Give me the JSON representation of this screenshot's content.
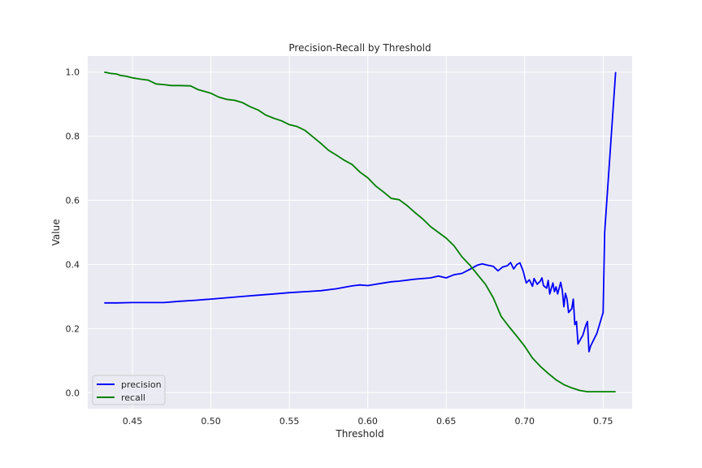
{
  "chart_data": {
    "type": "line",
    "title": "Precision-Recall by Threshold",
    "xlabel": "Threshold",
    "ylabel": "Value",
    "xlim": [
      0.4215,
      0.7685
    ],
    "ylim": [
      -0.05,
      1.05
    ],
    "xticks": [
      0.45,
      0.5,
      0.55,
      0.6,
      0.65,
      0.7,
      0.75
    ],
    "xtick_labels": [
      "0.45",
      "0.50",
      "0.55",
      "0.60",
      "0.65",
      "0.70",
      "0.75"
    ],
    "yticks": [
      0.0,
      0.2,
      0.4,
      0.6,
      0.8,
      1.0
    ],
    "ytick_labels": [
      "0.0",
      "0.2",
      "0.4",
      "0.6",
      "0.8",
      "1.0"
    ],
    "grid": true,
    "legend_position": "lower-left",
    "background": "#eaeaf2",
    "series": [
      {
        "name": "precision",
        "color": "#0000ff",
        "points": [
          [
            0.432,
            0.28
          ],
          [
            0.44,
            0.28
          ],
          [
            0.45,
            0.281
          ],
          [
            0.46,
            0.281
          ],
          [
            0.47,
            0.281
          ],
          [
            0.48,
            0.285
          ],
          [
            0.49,
            0.288
          ],
          [
            0.5,
            0.292
          ],
          [
            0.51,
            0.296
          ],
          [
            0.52,
            0.3
          ],
          [
            0.53,
            0.304
          ],
          [
            0.54,
            0.308
          ],
          [
            0.55,
            0.312
          ],
          [
            0.56,
            0.315
          ],
          [
            0.57,
            0.318
          ],
          [
            0.58,
            0.324
          ],
          [
            0.59,
            0.333
          ],
          [
            0.595,
            0.336
          ],
          [
            0.6,
            0.334
          ],
          [
            0.605,
            0.338
          ],
          [
            0.61,
            0.342
          ],
          [
            0.615,
            0.346
          ],
          [
            0.62,
            0.348
          ],
          [
            0.63,
            0.354
          ],
          [
            0.64,
            0.358
          ],
          [
            0.645,
            0.364
          ],
          [
            0.65,
            0.358
          ],
          [
            0.655,
            0.368
          ],
          [
            0.66,
            0.372
          ],
          [
            0.664,
            0.382
          ],
          [
            0.667,
            0.39
          ],
          [
            0.67,
            0.398
          ],
          [
            0.673,
            0.402
          ],
          [
            0.676,
            0.398
          ],
          [
            0.68,
            0.394
          ],
          [
            0.683,
            0.38
          ],
          [
            0.686,
            0.392
          ],
          [
            0.689,
            0.396
          ],
          [
            0.691,
            0.406
          ],
          [
            0.693,
            0.386
          ],
          [
            0.695,
            0.4
          ],
          [
            0.697,
            0.405
          ],
          [
            0.699,
            0.38
          ],
          [
            0.701,
            0.342
          ],
          [
            0.703,
            0.352
          ],
          [
            0.705,
            0.332
          ],
          [
            0.706,
            0.356
          ],
          [
            0.708,
            0.338
          ],
          [
            0.71,
            0.348
          ],
          [
            0.711,
            0.358
          ],
          [
            0.712,
            0.334
          ],
          [
            0.714,
            0.326
          ],
          [
            0.715,
            0.35
          ],
          [
            0.716,
            0.308
          ],
          [
            0.718,
            0.342
          ],
          [
            0.719,
            0.315
          ],
          [
            0.72,
            0.33
          ],
          [
            0.721,
            0.308
          ],
          [
            0.722,
            0.326
          ],
          [
            0.723,
            0.344
          ],
          [
            0.724,
            0.318
          ],
          [
            0.725,
            0.268
          ],
          [
            0.726,
            0.31
          ],
          [
            0.727,
            0.292
          ],
          [
            0.728,
            0.25
          ],
          [
            0.73,
            0.262
          ],
          [
            0.731,
            0.292
          ],
          [
            0.732,
            0.212
          ],
          [
            0.733,
            0.222
          ],
          [
            0.734,
            0.152
          ],
          [
            0.736,
            0.17
          ],
          [
            0.737,
            0.178
          ],
          [
            0.739,
            0.21
          ],
          [
            0.74,
            0.222
          ],
          [
            0.741,
            0.128
          ],
          [
            0.742,
            0.145
          ],
          [
            0.746,
            0.185
          ],
          [
            0.75,
            0.25
          ],
          [
            0.751,
            0.5
          ],
          [
            0.758,
            1.0
          ]
        ]
      },
      {
        "name": "recall",
        "color": "#008000",
        "points": [
          [
            0.432,
            1.0
          ],
          [
            0.436,
            0.996
          ],
          [
            0.44,
            0.994
          ],
          [
            0.442,
            0.99
          ],
          [
            0.446,
            0.987
          ],
          [
            0.45,
            0.982
          ],
          [
            0.455,
            0.978
          ],
          [
            0.46,
            0.975
          ],
          [
            0.465,
            0.963
          ],
          [
            0.47,
            0.961
          ],
          [
            0.475,
            0.958
          ],
          [
            0.48,
            0.958
          ],
          [
            0.487,
            0.957
          ],
          [
            0.492,
            0.945
          ],
          [
            0.5,
            0.934
          ],
          [
            0.505,
            0.922
          ],
          [
            0.51,
            0.915
          ],
          [
            0.515,
            0.912
          ],
          [
            0.52,
            0.905
          ],
          [
            0.525,
            0.892
          ],
          [
            0.53,
            0.882
          ],
          [
            0.535,
            0.866
          ],
          [
            0.54,
            0.856
          ],
          [
            0.545,
            0.848
          ],
          [
            0.55,
            0.836
          ],
          [
            0.555,
            0.83
          ],
          [
            0.56,
            0.818
          ],
          [
            0.565,
            0.798
          ],
          [
            0.57,
            0.778
          ],
          [
            0.575,
            0.756
          ],
          [
            0.58,
            0.741
          ],
          [
            0.585,
            0.725
          ],
          [
            0.59,
            0.712
          ],
          [
            0.595,
            0.688
          ],
          [
            0.6,
            0.67
          ],
          [
            0.605,
            0.645
          ],
          [
            0.61,
            0.626
          ],
          [
            0.615,
            0.606
          ],
          [
            0.62,
            0.602
          ],
          [
            0.625,
            0.584
          ],
          [
            0.63,
            0.562
          ],
          [
            0.635,
            0.542
          ],
          [
            0.64,
            0.518
          ],
          [
            0.645,
            0.5
          ],
          [
            0.65,
            0.482
          ],
          [
            0.655,
            0.458
          ],
          [
            0.66,
            0.424
          ],
          [
            0.665,
            0.398
          ],
          [
            0.67,
            0.368
          ],
          [
            0.675,
            0.338
          ],
          [
            0.68,
            0.296
          ],
          [
            0.685,
            0.238
          ],
          [
            0.69,
            0.206
          ],
          [
            0.695,
            0.176
          ],
          [
            0.7,
            0.145
          ],
          [
            0.705,
            0.108
          ],
          [
            0.71,
            0.082
          ],
          [
            0.715,
            0.06
          ],
          [
            0.72,
            0.04
          ],
          [
            0.725,
            0.025
          ],
          [
            0.73,
            0.015
          ],
          [
            0.735,
            0.007
          ],
          [
            0.74,
            0.003
          ],
          [
            0.75,
            0.003
          ],
          [
            0.758,
            0.003
          ]
        ]
      }
    ]
  }
}
